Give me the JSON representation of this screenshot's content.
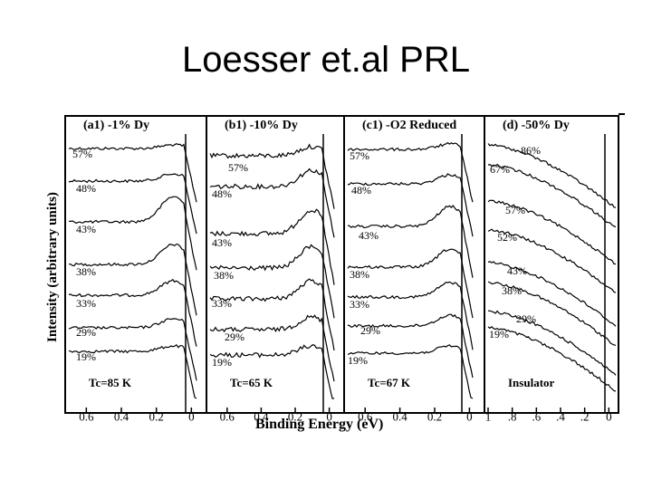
{
  "slide": {
    "title": "Loesser et.al PRL"
  },
  "chart_data": {
    "type": "line",
    "ylabel": "Intensity (arbitrary units)",
    "xlabel": "Binding Energy (eV)",
    "panels": [
      {
        "id": "a1",
        "label": "(a1) -1% Dy",
        "annotation": "Tc=85 K",
        "xlim": [
          0.7,
          -0.05
        ],
        "ticks": [
          "0.6",
          "0.4",
          "0.2",
          "0"
        ],
        "tick_values": [
          0.6,
          0.4,
          0.2,
          0
        ],
        "series": [
          {
            "name": "57%"
          },
          {
            "name": "48%"
          },
          {
            "name": "43%"
          },
          {
            "name": "38%"
          },
          {
            "name": "33%"
          },
          {
            "name": "29%"
          },
          {
            "name": "19%"
          }
        ]
      },
      {
        "id": "b1",
        "label": "(b1) -10% Dy",
        "annotation": "Tc=65 K",
        "xlim": [
          0.7,
          -0.05
        ],
        "ticks": [
          "0.6",
          "0.4",
          "0.2",
          "0"
        ],
        "tick_values": [
          0.6,
          0.4,
          0.2,
          0
        ],
        "series": [
          {
            "name": "57%"
          },
          {
            "name": "48%"
          },
          {
            "name": "43%"
          },
          {
            "name": "38%"
          },
          {
            "name": "33%"
          },
          {
            "name": "29%"
          },
          {
            "name": "19%"
          }
        ]
      },
      {
        "id": "c1",
        "label": "(c1) -O2 Reduced",
        "annotation": "Tc=67 K",
        "xlim": [
          0.7,
          -0.05
        ],
        "ticks": [
          "0.6",
          "0.4",
          "0.2",
          "0"
        ],
        "tick_values": [
          0.6,
          0.4,
          0.2,
          0
        ],
        "series": [
          {
            "name": "57%"
          },
          {
            "name": "48%"
          },
          {
            "name": "43%"
          },
          {
            "name": "38%"
          },
          {
            "name": "33%"
          },
          {
            "name": "29%"
          },
          {
            "name": "19%"
          }
        ]
      },
      {
        "id": "d",
        "label": "(d) -50% Dy",
        "annotation": "Insulator",
        "xlim": [
          1.0,
          -0.05
        ],
        "ticks": [
          "1",
          ".8",
          ".6",
          ".4",
          ".2",
          "0"
        ],
        "tick_values": [
          1,
          0.8,
          0.6,
          0.4,
          0.2,
          0
        ],
        "series": [
          {
            "name": "86%"
          },
          {
            "name": "67%"
          },
          {
            "name": "57%"
          },
          {
            "name": "52%"
          },
          {
            "name": "43%"
          },
          {
            "name": "38%"
          },
          {
            "name": "29%"
          },
          {
            "name": "19%"
          }
        ]
      }
    ],
    "grid": false
  }
}
